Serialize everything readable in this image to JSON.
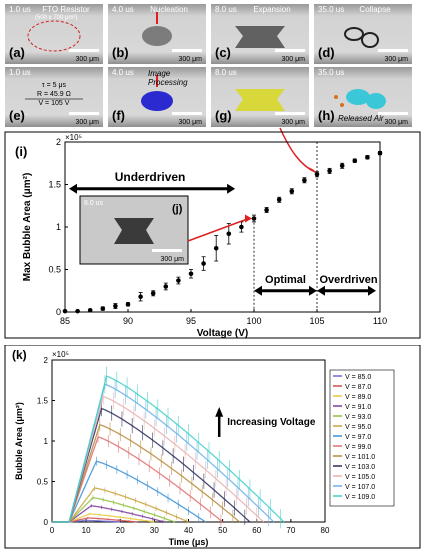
{
  "panels": [
    {
      "label": "(a)",
      "time": "1.0 us",
      "title": "FTO Resistor",
      "note": "(500 x 700 μm²)",
      "scale": "300 μm",
      "kind": "resistor"
    },
    {
      "label": "(b)",
      "time": "4.0 us",
      "title": "Nucleation",
      "scale": "300 μm",
      "kind": "nucleation"
    },
    {
      "label": "(c)",
      "time": "8.0 us",
      "title": "Expansion",
      "scale": "300 μm",
      "kind": "expansion"
    },
    {
      "label": "(d)",
      "time": "35.0 us",
      "title": "Collapse",
      "scale": "300 μm",
      "kind": "collapse"
    },
    {
      "label": "(e)",
      "time": "1.0 us",
      "scale": "300 μm",
      "kind": "params",
      "params": [
        "τ = 5 μs",
        "R = 45.9 Ω",
        "V = 105 V"
      ]
    },
    {
      "label": "(f)",
      "time": "4.0 us",
      "title": "Image Processing",
      "scale": "300 μm",
      "kind": "processed-blue"
    },
    {
      "label": "(g)",
      "time": "8.0 us",
      "scale": "300 μm",
      "kind": "processed-yellow"
    },
    {
      "label": "(h)",
      "time": "35.0 us",
      "title": "Released Air",
      "scale": "300 μm",
      "kind": "processed-cyan"
    }
  ],
  "chart_data": [
    {
      "type": "scatter",
      "panel_label": "(i)",
      "xlabel": "Voltage (V)",
      "ylabel": "Max Bubble Area (μm²)",
      "exponent": "×10⁵",
      "xlim": [
        85,
        110
      ],
      "ylim": [
        0,
        2
      ],
      "xticks": [
        "85",
        "90",
        "95",
        "100",
        "105",
        "110"
      ],
      "yticks": [
        "0",
        "0.5",
        "1",
        "1.5",
        "2"
      ],
      "x": [
        85,
        86,
        87,
        88,
        89,
        90,
        91,
        92,
        93,
        94,
        95,
        96,
        97,
        98,
        99,
        100,
        101,
        102,
        103,
        104,
        105,
        106,
        107,
        108,
        109,
        110
      ],
      "y": [
        0.01,
        0.01,
        0.02,
        0.04,
        0.07,
        0.09,
        0.18,
        0.22,
        0.3,
        0.37,
        0.45,
        0.57,
        0.75,
        0.92,
        1.0,
        1.1,
        1.2,
        1.32,
        1.42,
        1.55,
        1.62,
        1.66,
        1.72,
        1.78,
        1.82,
        1.87
      ],
      "err": [
        0,
        0,
        0,
        0.02,
        0.03,
        0.02,
        0.05,
        0.03,
        0.04,
        0.04,
        0.05,
        0.08,
        0.15,
        0.12,
        0.06,
        0.04,
        0.03,
        0.03,
        0.03,
        0.03,
        0.03,
        0.03,
        0.03,
        0.02,
        0.02,
        0.02
      ],
      "annotations": {
        "underdriven": "Underdriven",
        "optimal": "Optimal",
        "overdriven": "Overdriven"
      },
      "inset": {
        "label": "(j)",
        "time": "8.0 us",
        "scale": "300 μm"
      }
    },
    {
      "type": "line",
      "panel_label": "(k)",
      "xlabel": "Time (μs)",
      "ylabel": "Bubble Area (μm²)",
      "exponent": "×10⁵",
      "xlim": [
        0,
        80
      ],
      "ylim": [
        0,
        2
      ],
      "xticks": [
        "0",
        "10",
        "20",
        "30",
        "40",
        "50",
        "60",
        "70",
        "80"
      ],
      "yticks": [
        "0",
        "0.5",
        "1",
        "1.5",
        "2"
      ],
      "annotation": "Increasing Voltage",
      "series": [
        {
          "name": "V = 85.0",
          "color": "#6a6ad8",
          "peak": 0.02,
          "end": 20
        },
        {
          "name": "V = 87.0",
          "color": "#d64b4b",
          "peak": 0.05,
          "end": 25
        },
        {
          "name": "V = 89.0",
          "color": "#e8c93a",
          "peak": 0.1,
          "end": 30
        },
        {
          "name": "V = 91.0",
          "color": "#7a3a9a",
          "peak": 0.2,
          "end": 33
        },
        {
          "name": "V = 93.0",
          "color": "#8fbf3a",
          "peak": 0.3,
          "end": 36
        },
        {
          "name": "V = 95.0",
          "color": "#c9a23a",
          "peak": 0.42,
          "end": 40
        },
        {
          "name": "V = 97.0",
          "color": "#3a8fd6",
          "peak": 0.75,
          "end": 45
        },
        {
          "name": "V = 99.0",
          "color": "#e07070",
          "peak": 1.05,
          "end": 50
        },
        {
          "name": "V = 101.0",
          "color": "#b58a3a",
          "peak": 1.2,
          "end": 55
        },
        {
          "name": "V = 103.0",
          "color": "#2a2a5a",
          "peak": 1.4,
          "end": 58
        },
        {
          "name": "V = 105.0",
          "color": "#e8b0b0",
          "peak": 1.55,
          "end": 62
        },
        {
          "name": "V = 107.0",
          "color": "#6ab0e8",
          "peak": 1.7,
          "end": 65
        },
        {
          "name": "V = 109.0",
          "color": "#40d0c8",
          "peak": 1.8,
          "end": 68
        }
      ]
    }
  ]
}
